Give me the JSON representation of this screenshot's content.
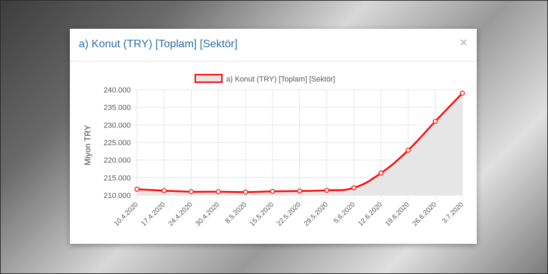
{
  "modal": {
    "title": "a) Konut (TRY) [Toplam] [Sektör]",
    "close_label": "×"
  },
  "colors": {
    "series_line": "#ff0000",
    "series_fill": "#e6e6e6",
    "title": "#2a6fa8",
    "grid": "#e6e6e6"
  },
  "chart_data": {
    "type": "area",
    "ylabel": "Miyon TRY",
    "x": [
      "10.4.2020",
      "17.4.2020",
      "24.4.2020",
      "30.4.2020",
      "8.5.2020",
      "15.5.2020",
      "22.5.2020",
      "29.5.2020",
      "5.6.2020",
      "12.6.2020",
      "19.6.2020",
      "26.6.2020",
      "3.7.2020"
    ],
    "series": [
      {
        "name": "a) Konut (TRY) [Toplam] [Sektör]",
        "values": [
          211700,
          211300,
          211000,
          211000,
          210900,
          211100,
          211200,
          211400,
          212100,
          216300,
          222800,
          231000,
          239000
        ]
      }
    ],
    "ylim": [
      210000,
      240000
    ],
    "yticks": [
      "210.000",
      "215.000",
      "220.000",
      "225.000",
      "230.000",
      "235.000",
      "240.000"
    ],
    "grid": true,
    "legend": "top"
  }
}
